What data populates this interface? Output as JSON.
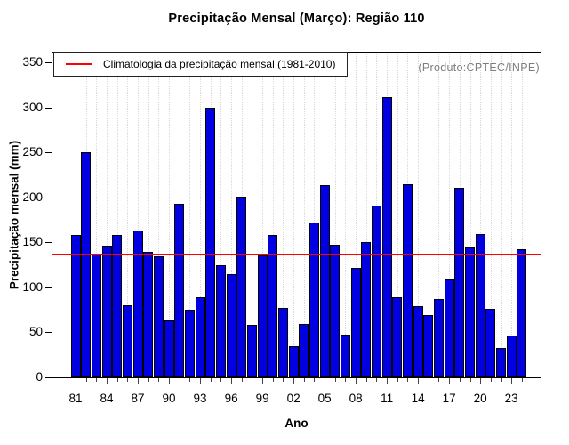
{
  "chart_data": {
    "type": "bar",
    "title": "Precipitação Mensal (Março): Região 110",
    "xlabel": "Ano",
    "ylabel": "Precipitação mensal (mm)",
    "ylim": [
      0,
      350
    ],
    "yticks": [
      0,
      50,
      100,
      150,
      200,
      250,
      300,
      350
    ],
    "grid": "vertical-dotted",
    "legend_position": "top-left",
    "annotation": "(Produto:CPTEC/INPE)",
    "bar_color": "#0000e0",
    "bar_border_color": "#000000",
    "x": [
      1981,
      1982,
      1983,
      1984,
      1985,
      1986,
      1987,
      1988,
      1989,
      1990,
      1991,
      1992,
      1993,
      1994,
      1995,
      1996,
      1997,
      1998,
      1999,
      2000,
      2001,
      2002,
      2003,
      2004,
      2005,
      2006,
      2007,
      2008,
      2009,
      2010,
      2011,
      2012,
      2013,
      2014,
      2015,
      2016,
      2017,
      2018,
      2019,
      2020,
      2021,
      2022,
      2023,
      2024
    ],
    "values": [
      158,
      250,
      136,
      146,
      158,
      80,
      163,
      139,
      134,
      63,
      193,
      75,
      89,
      300,
      125,
      115,
      201,
      58,
      135,
      158,
      77,
      35,
      59,
      172,
      214,
      147,
      47,
      122,
      150,
      191,
      311,
      89,
      215,
      79,
      69,
      87,
      109,
      211,
      144,
      159,
      76,
      33,
      46,
      142
    ],
    "xtick_labels": [
      "81",
      "84",
      "87",
      "90",
      "93",
      "96",
      "99",
      "02",
      "05",
      "08",
      "11",
      "14",
      "17",
      "20",
      "23"
    ],
    "reference_line": {
      "value": 136,
      "color": "#ff0000",
      "label": "Climatologia da precipitação mensal (1981-2010)"
    }
  }
}
